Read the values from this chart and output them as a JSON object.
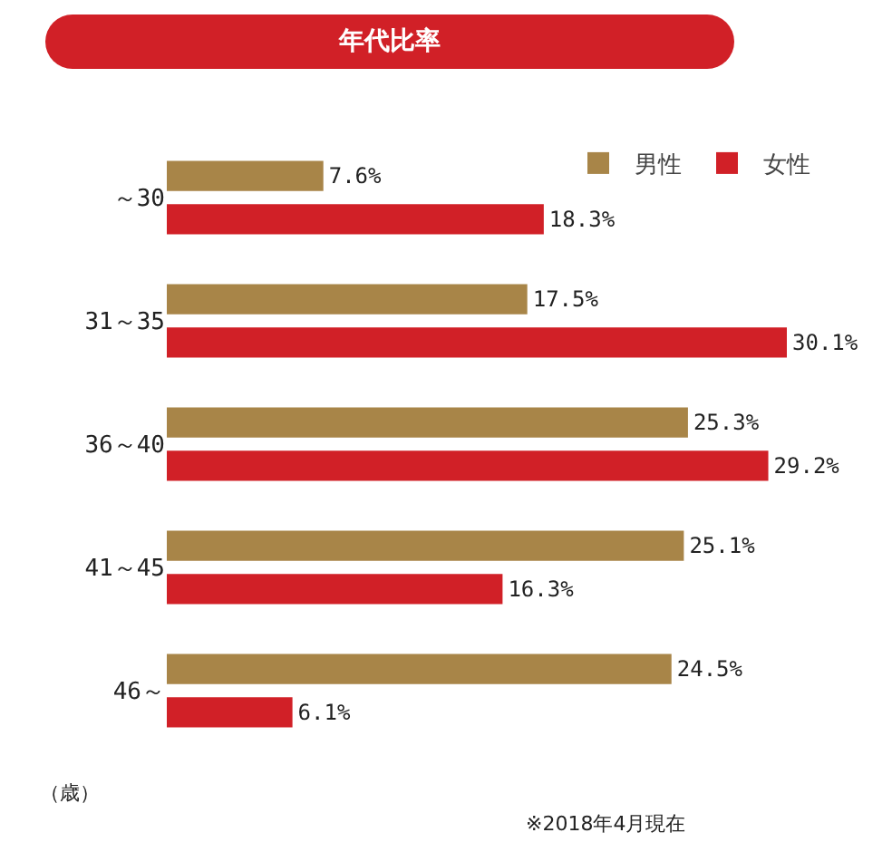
{
  "chart_data": {
    "type": "bar",
    "title": "年代比率",
    "orientation": "horizontal",
    "categories": [
      "～30",
      "31～35",
      "36～40",
      "41～45",
      "46～"
    ],
    "series": [
      {
        "name": "男性",
        "color": "#a88548",
        "values": [
          7.6,
          17.5,
          25.3,
          25.1,
          24.5
        ],
        "value_labels": [
          "7.6%",
          "17.5%",
          "25.3%",
          "25.1%",
          "24.5%"
        ]
      },
      {
        "name": "女性",
        "color": "#d12027",
        "values": [
          18.3,
          30.1,
          29.2,
          16.3,
          6.1
        ],
        "value_labels": [
          "18.3%",
          "30.1%",
          "29.2%",
          "16.3%",
          "6.1%"
        ]
      }
    ],
    "legend": "top right",
    "grid": false,
    "tick_labels": "y",
    "annotations": [
      "（歳）",
      "※2018年4月現在"
    ]
  }
}
